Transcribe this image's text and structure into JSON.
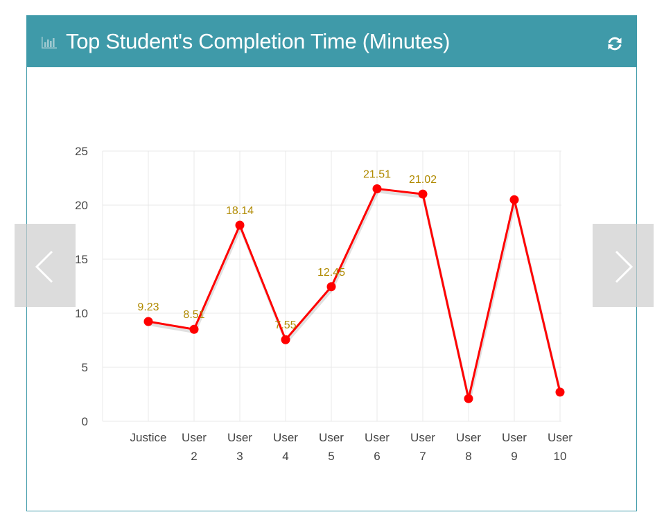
{
  "panel": {
    "title": "Top Student's Completion Time (Minutes)",
    "header_color": "#3f9aa9",
    "icons": {
      "chart": "bar-chart-icon",
      "refresh": "refresh-icon",
      "prev": "chevron-left-icon",
      "next": "chevron-right-icon"
    }
  },
  "chart_data": {
    "type": "line",
    "title": "Top Student's Completion Time (Minutes)",
    "xlabel": "",
    "ylabel": "",
    "categories": [
      [
        "Justice"
      ],
      [
        "User",
        "2"
      ],
      [
        "User",
        "3"
      ],
      [
        "User",
        "4"
      ],
      [
        "User",
        "5"
      ],
      [
        "User",
        "6"
      ],
      [
        "User",
        "7"
      ],
      [
        "User",
        "8"
      ],
      [
        "User",
        "9"
      ],
      [
        "User",
        "10"
      ]
    ],
    "series": [
      {
        "values": [
          9.23,
          8.51,
          18.14,
          7.55,
          12.45,
          21.51,
          21.02,
          2.1,
          20.5,
          2.7
        ],
        "color": "#ff0000"
      }
    ],
    "data_labels": [
      "9.23",
      "8.51",
      "18.14",
      "7.55",
      "12.45",
      "21.51",
      "21.02",
      null,
      null,
      null
    ],
    "ylim": [
      0,
      25
    ],
    "yticks": [
      "0",
      "5",
      "10",
      "15",
      "20",
      "25"
    ],
    "grid": true,
    "label_color": "#b08a00"
  }
}
